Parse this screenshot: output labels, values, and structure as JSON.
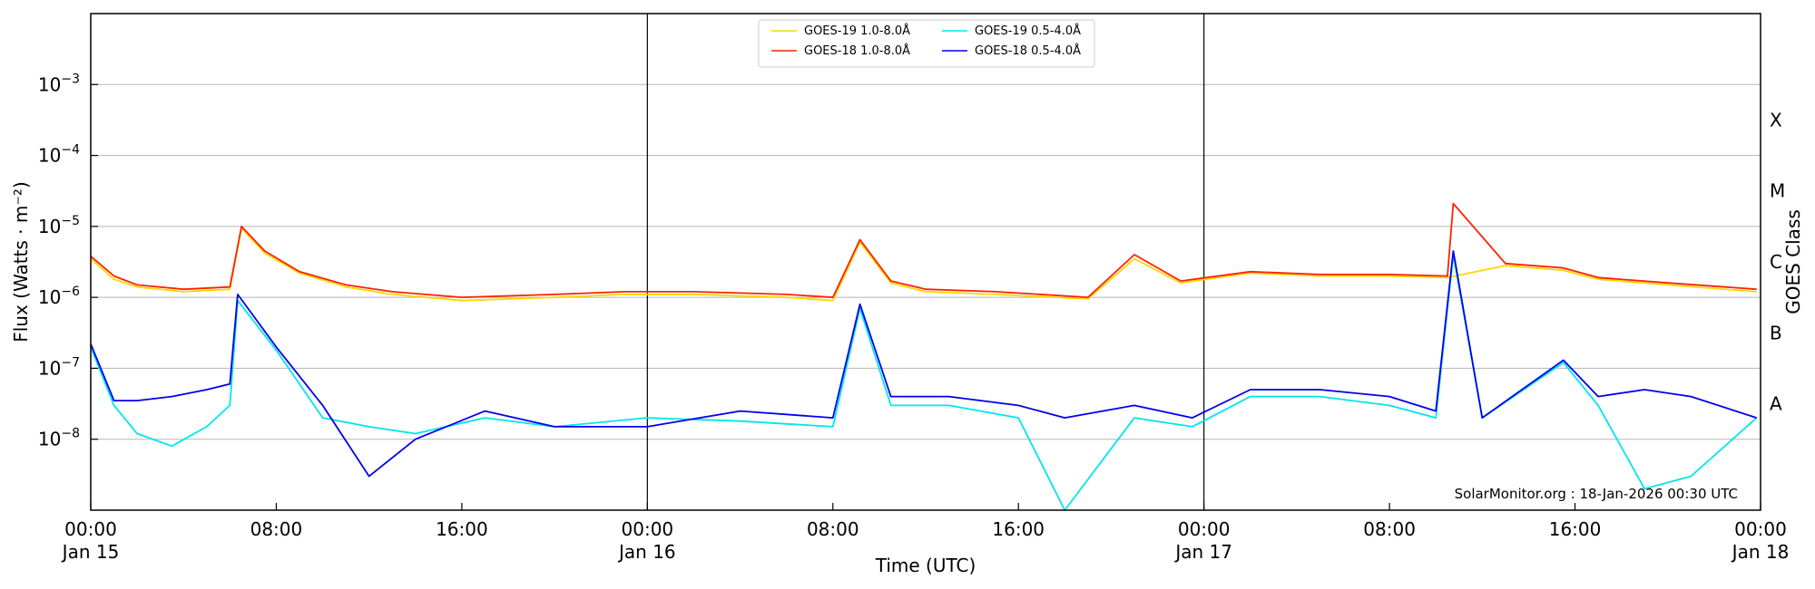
{
  "chart_data": {
    "type": "line",
    "xlabel": "Time (UTC)",
    "ylabel": "Flux (Watts · m⁻²)",
    "y2label": "GOES Class",
    "y_scale": "log",
    "ylim": [
      1e-09,
      0.01
    ],
    "xlim": [
      "2026-01-15 00:00",
      "2026-01-18 00:00"
    ],
    "x_ticks": [
      {
        "t": "2026-01-15 00:00",
        "line1": "00:00",
        "line2": "Jan 15"
      },
      {
        "t": "2026-01-15 08:00",
        "line1": "08:00",
        "line2": ""
      },
      {
        "t": "2026-01-15 16:00",
        "line1": "16:00",
        "line2": ""
      },
      {
        "t": "2026-01-16 00:00",
        "line1": "00:00",
        "line2": "Jan 16"
      },
      {
        "t": "2026-01-16 08:00",
        "line1": "08:00",
        "line2": ""
      },
      {
        "t": "2026-01-16 16:00",
        "line1": "16:00",
        "line2": ""
      },
      {
        "t": "2026-01-17 00:00",
        "line1": "00:00",
        "line2": "Jan 17"
      },
      {
        "t": "2026-01-17 08:00",
        "line1": "08:00",
        "line2": ""
      },
      {
        "t": "2026-01-17 16:00",
        "line1": "16:00",
        "line2": ""
      },
      {
        "t": "2026-01-18 00:00",
        "line1": "00:00",
        "line2": "Jan 18"
      }
    ],
    "y_ticks": [
      {
        "value": 1e-08,
        "base": "10",
        "exp": "−8"
      },
      {
        "value": 1e-07,
        "base": "10",
        "exp": "−7"
      },
      {
        "value": 1e-06,
        "base": "10",
        "exp": "−6"
      },
      {
        "value": 1e-05,
        "base": "10",
        "exp": "−5"
      },
      {
        "value": 0.0001,
        "base": "10",
        "exp": "−4"
      },
      {
        "value": 0.001,
        "base": "10",
        "exp": "−3"
      }
    ],
    "goes_classes": [
      {
        "label": "A",
        "value": 3.16e-08
      },
      {
        "label": "B",
        "value": 3.16e-07
      },
      {
        "label": "C",
        "value": 3.16e-06
      },
      {
        "label": "M",
        "value": 3.16e-05
      },
      {
        "label": "X",
        "value": 0.000316
      }
    ],
    "day_boundaries": [
      "2026-01-16 00:00",
      "2026-01-17 00:00"
    ],
    "grid": "horizontal",
    "legend_position": "top-center",
    "credit": "SolarMonitor.org : 18-Jan-2026 00:30 UTC",
    "series": [
      {
        "name": "GOES-19 1.0-8.0Å",
        "color": "#ffd700",
        "x": [
          "2026-01-15 00:00",
          "2026-01-15 01:00",
          "2026-01-15 02:00",
          "2026-01-15 04:00",
          "2026-01-15 06:00",
          "2026-01-15 06:30",
          "2026-01-15 07:30",
          "2026-01-15 09:00",
          "2026-01-15 11:00",
          "2026-01-15 13:00",
          "2026-01-15 16:00",
          "2026-01-15 20:00",
          "2026-01-15 23:00",
          "2026-01-16 02:00",
          "2026-01-16 06:00",
          "2026-01-16 08:00",
          "2026-01-16 09:10",
          "2026-01-16 10:30",
          "2026-01-16 12:00",
          "2026-01-16 15:00",
          "2026-01-16 19:00",
          "2026-01-16 21:00",
          "2026-01-16 23:00",
          "2026-01-17 02:00",
          "2026-01-17 05:00",
          "2026-01-17 08:00",
          "2026-01-17 10:30",
          "2026-01-17 13:00",
          "2026-01-17 15:30",
          "2026-01-17 17:00",
          "2026-01-17 20:00",
          "2026-01-17 23:50"
        ],
        "values": [
          3.5e-06,
          1.8e-06,
          1.4e-06,
          1.2e-06,
          1.3e-06,
          9.5e-06,
          4.2e-06,
          2.2e-06,
          1.4e-06,
          1.1e-06,
          9e-07,
          1e-06,
          1.1e-06,
          1.1e-06,
          1e-06,
          9e-07,
          6e-06,
          1.6e-06,
          1.2e-06,
          1.1e-06,
          9.5e-07,
          3.5e-06,
          1.6e-06,
          2.2e-06,
          2e-06,
          2e-06,
          1.9e-06,
          2.8e-06,
          2.4e-06,
          1.8e-06,
          1.5e-06,
          1.2e-06
        ]
      },
      {
        "name": "GOES-18 1.0-8.0Å",
        "color": "#ff2200",
        "x": [
          "2026-01-15 00:00",
          "2026-01-15 01:00",
          "2026-01-15 02:00",
          "2026-01-15 04:00",
          "2026-01-15 06:00",
          "2026-01-15 06:30",
          "2026-01-15 07:30",
          "2026-01-15 09:00",
          "2026-01-15 11:00",
          "2026-01-15 13:00",
          "2026-01-15 16:00",
          "2026-01-15 20:00",
          "2026-01-15 23:00",
          "2026-01-16 02:00",
          "2026-01-16 06:00",
          "2026-01-16 08:00",
          "2026-01-16 09:10",
          "2026-01-16 10:30",
          "2026-01-16 12:00",
          "2026-01-16 15:00",
          "2026-01-16 19:00",
          "2026-01-16 21:00",
          "2026-01-16 23:00",
          "2026-01-17 02:00",
          "2026-01-17 05:00",
          "2026-01-17 08:00",
          "2026-01-17 10:30",
          "2026-01-17 10:45",
          "2026-01-17 13:00",
          "2026-01-17 15:30",
          "2026-01-17 17:00",
          "2026-01-17 20:00",
          "2026-01-17 23:50"
        ],
        "values": [
          3.8e-06,
          2e-06,
          1.5e-06,
          1.3e-06,
          1.4e-06,
          1e-05,
          4.5e-06,
          2.3e-06,
          1.5e-06,
          1.2e-06,
          1e-06,
          1.1e-06,
          1.2e-06,
          1.2e-06,
          1.1e-06,
          1e-06,
          6.5e-06,
          1.7e-06,
          1.3e-06,
          1.2e-06,
          1e-06,
          4e-06,
          1.7e-06,
          2.3e-06,
          2.1e-06,
          2.1e-06,
          2e-06,
          2.1e-05,
          3e-06,
          2.6e-06,
          1.9e-06,
          1.6e-06,
          1.3e-06
        ]
      },
      {
        "name": "GOES-19 0.5-4.0Å",
        "color": "#00e5ee",
        "x": [
          "2026-01-15 00:00",
          "2026-01-15 01:00",
          "2026-01-15 02:00",
          "2026-01-15 03:30",
          "2026-01-15 05:00",
          "2026-01-15 06:00",
          "2026-01-15 06:20",
          "2026-01-15 08:00",
          "2026-01-15 10:00",
          "2026-01-15 12:00",
          "2026-01-15 14:00",
          "2026-01-15 17:00",
          "2026-01-15 20:00",
          "2026-01-16 00:00",
          "2026-01-16 04:00",
          "2026-01-16 08:00",
          "2026-01-16 09:10",
          "2026-01-16 10:30",
          "2026-01-16 13:00",
          "2026-01-16 16:00",
          "2026-01-16 18:00",
          "2026-01-16 21:00",
          "2026-01-16 23:30",
          "2026-01-17 02:00",
          "2026-01-17 05:00",
          "2026-01-17 08:00",
          "2026-01-17 10:00",
          "2026-01-17 10:45",
          "2026-01-17 12:00",
          "2026-01-17 15:30",
          "2026-01-17 17:00",
          "2026-01-17 19:00",
          "2026-01-17 21:00",
          "2026-01-17 23:50"
        ],
        "values": [
          2e-07,
          3e-08,
          1.2e-08,
          8e-09,
          1.5e-08,
          3e-08,
          9e-07,
          1.8e-07,
          2e-08,
          1.5e-08,
          1.2e-08,
          2e-08,
          1.5e-08,
          2e-08,
          1.8e-08,
          1.5e-08,
          7e-07,
          3e-08,
          3e-08,
          2e-08,
          1e-09,
          2e-08,
          1.5e-08,
          4e-08,
          4e-08,
          3e-08,
          2e-08,
          4e-06,
          2e-08,
          1.2e-07,
          3e-08,
          2e-09,
          3e-09,
          2e-08
        ]
      },
      {
        "name": "GOES-18 0.5-4.0Å",
        "color": "#0000ee",
        "x": [
          "2026-01-15 00:00",
          "2026-01-15 01:00",
          "2026-01-15 02:00",
          "2026-01-15 03:30",
          "2026-01-15 05:00",
          "2026-01-15 06:00",
          "2026-01-15 06:20",
          "2026-01-15 08:00",
          "2026-01-15 10:00",
          "2026-01-15 12:00",
          "2026-01-15 14:00",
          "2026-01-15 17:00",
          "2026-01-15 20:00",
          "2026-01-16 00:00",
          "2026-01-16 04:00",
          "2026-01-16 08:00",
          "2026-01-16 09:10",
          "2026-01-16 10:30",
          "2026-01-16 13:00",
          "2026-01-16 16:00",
          "2026-01-16 18:00",
          "2026-01-16 21:00",
          "2026-01-16 23:30",
          "2026-01-17 02:00",
          "2026-01-17 05:00",
          "2026-01-17 08:00",
          "2026-01-17 10:00",
          "2026-01-17 10:45",
          "2026-01-17 12:00",
          "2026-01-17 15:30",
          "2026-01-17 17:00",
          "2026-01-17 19:00",
          "2026-01-17 21:00",
          "2026-01-17 23:50"
        ],
        "values": [
          2.2e-07,
          3.5e-08,
          3.5e-08,
          4e-08,
          5e-08,
          6e-08,
          1.1e-06,
          2e-07,
          3e-08,
          3e-09,
          1e-08,
          2.5e-08,
          1.5e-08,
          1.5e-08,
          2.5e-08,
          2e-08,
          8e-07,
          4e-08,
          4e-08,
          3e-08,
          2e-08,
          3e-08,
          2e-08,
          5e-08,
          5e-08,
          4e-08,
          2.5e-08,
          4.5e-06,
          2e-08,
          1.3e-07,
          4e-08,
          5e-08,
          4e-08,
          2e-08
        ]
      }
    ]
  }
}
